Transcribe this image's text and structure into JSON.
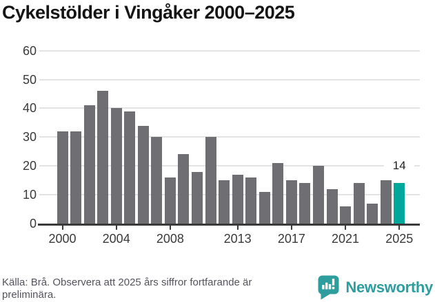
{
  "title": "Cykelstölder i Vingåker 2000–2025",
  "chart_data": {
    "type": "bar",
    "title": "Cykelstölder i Vingåker 2000–2025",
    "series_name": "Cykelstölder",
    "x": [
      2000,
      2001,
      2002,
      2003,
      2004,
      2005,
      2006,
      2007,
      2008,
      2009,
      2010,
      2011,
      2012,
      2013,
      2014,
      2015,
      2016,
      2017,
      2018,
      2019,
      2020,
      2021,
      2022,
      2023,
      2024,
      2025
    ],
    "values": [
      32,
      32,
      41,
      46,
      40,
      39,
      34,
      30,
      16,
      24,
      18,
      30,
      15,
      17,
      16,
      11,
      21,
      15,
      14,
      20,
      12,
      6,
      14,
      7,
      15,
      14
    ],
    "ylim": [
      0,
      60
    ],
    "yticks": [
      0,
      10,
      20,
      30,
      40,
      50,
      60
    ],
    "xticks": [
      2000,
      2004,
      2008,
      2013,
      2017,
      2021,
      2025
    ],
    "grid": true,
    "legend_position": "none",
    "bar_color": "#6e6e73",
    "axis_color": "#3a3a3a",
    "gridline_color": "#e3e3e3",
    "highlight": {
      "year": 2025,
      "value": 14,
      "label": "14",
      "color": "#00a79b"
    }
  },
  "footer": {
    "source_note": "Källa: Brå. Observera att 2025 års siffror fortfarande är preliminära."
  },
  "logo": {
    "text": "Newsworthy",
    "color": "#2e9d9d",
    "icon": "newsworthy-chart-bubble-icon"
  }
}
